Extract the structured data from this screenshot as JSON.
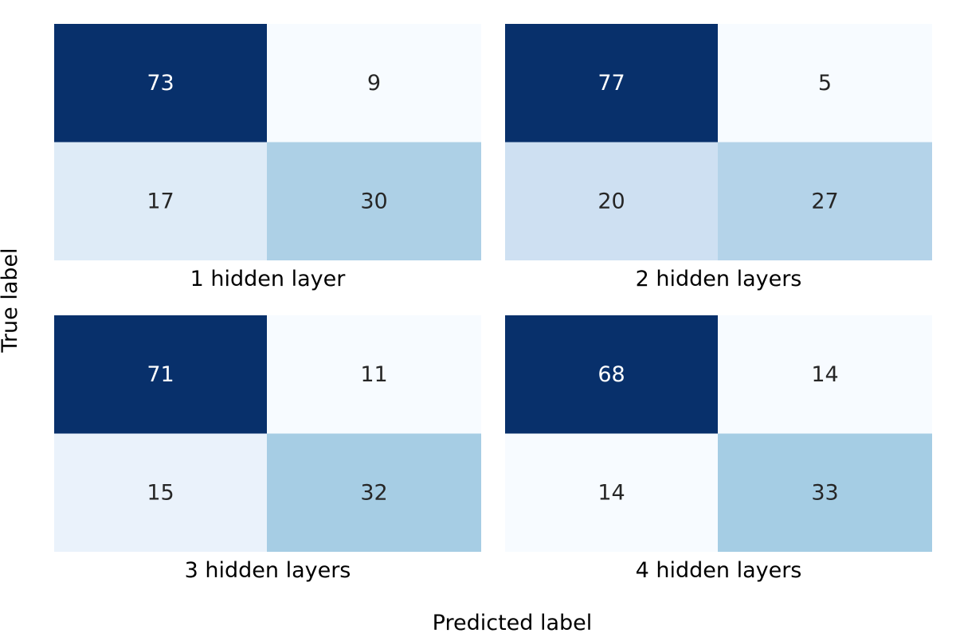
{
  "figure": {
    "xlabel": "Predicted label",
    "ylabel": "True label"
  },
  "colors": {
    "scale": [
      "#f7fbff",
      "#deebf7",
      "#c6dbef",
      "#9ecae1",
      "#6baed6",
      "#4292c6",
      "#2171b5",
      "#08519c",
      "#08306b"
    ],
    "text_dark": "#262626",
    "text_light": "#ffffff"
  },
  "chart_data": [
    {
      "type": "heatmap",
      "title": "1 hidden layer",
      "matrix": [
        [
          73,
          9
        ],
        [
          17,
          30
        ]
      ],
      "colormap": "Blues",
      "colorbar": false
    },
    {
      "type": "heatmap",
      "title": "2 hidden layers",
      "matrix": [
        [
          77,
          5
        ],
        [
          20,
          27
        ]
      ],
      "colormap": "Blues",
      "colorbar": false
    },
    {
      "type": "heatmap",
      "title": "3 hidden layers",
      "matrix": [
        [
          71,
          11
        ],
        [
          15,
          32
        ]
      ],
      "colormap": "Blues",
      "colorbar": false
    },
    {
      "type": "heatmap",
      "title": "4 hidden layers",
      "matrix": [
        [
          68,
          14
        ],
        [
          14,
          33
        ]
      ],
      "colormap": "Blues",
      "colorbar": false
    }
  ]
}
